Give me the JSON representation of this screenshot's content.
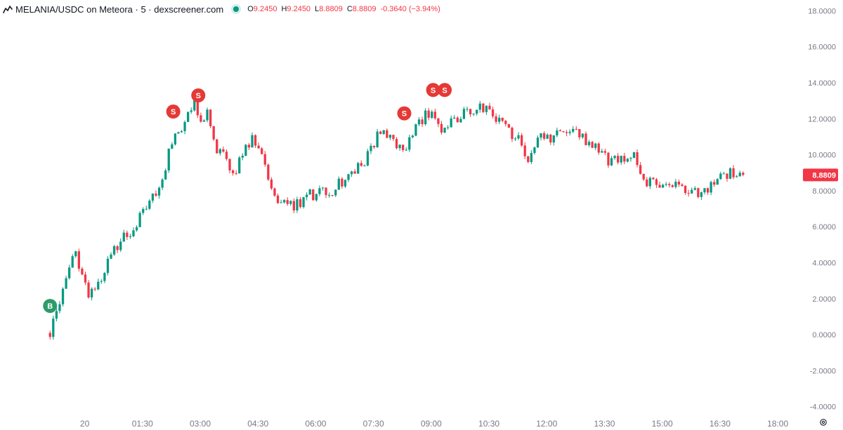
{
  "header": {
    "symbol": "MELANIA/USDC on Meteora · 5 · dexscreener.com",
    "o_label": "O",
    "o_value": "9.2450",
    "h_label": "H",
    "h_value": "9.2450",
    "l_label": "L",
    "l_value": "8.8809",
    "c_label": "C",
    "c_value": "8.8809",
    "change": "-0.3640 (−3.94%)"
  },
  "colors": {
    "up": "#089981",
    "down": "#f23645",
    "axis_text": "#787b86",
    "price_label_bg": "#f23645",
    "buy_marker": "#2e9b6a",
    "sell_marker": "#e53935",
    "text": "#131722"
  },
  "icons": {
    "logo": "chart-logo-icon",
    "settings": "settings-gear-icon"
  },
  "chart_data": {
    "type": "candlestick",
    "title": "MELANIA/USDC on Meteora · 5 · dexscreener.com",
    "timeframe": "5",
    "grid": false,
    "ylim": [
      -4.4,
      18.6
    ],
    "y_ticks": [
      "18.0000",
      "16.0000",
      "14.0000",
      "12.0000",
      "10.0000",
      "8.0000",
      "6.0000",
      "4.0000",
      "2.0000",
      "0.0000",
      "-2.0000",
      "-4.0000"
    ],
    "x_ticks": [
      "20",
      "01:30",
      "03:00",
      "04:30",
      "06:00",
      "07:30",
      "09:00",
      "10:30",
      "12:00",
      "13:30",
      "15:00",
      "16:30",
      "18:00"
    ],
    "x_tick_hours": [
      0,
      1.5,
      3,
      4.5,
      6,
      7.5,
      9,
      10.5,
      12,
      13.5,
      15,
      16.5,
      18
    ],
    "x_range_hours": [
      -2.2,
      18.6
    ],
    "last_price": "8.8809",
    "last_close": 8.8809,
    "markers": [
      {
        "type": "B",
        "t": -0.9,
        "price": 1.6
      },
      {
        "type": "S",
        "t": 2.3,
        "price": 12.4
      },
      {
        "type": "S",
        "t": 2.95,
        "price": 13.3
      },
      {
        "type": "S",
        "t": 8.3,
        "price": 12.3
      },
      {
        "type": "S",
        "t": 9.05,
        "price": 13.6
      },
      {
        "type": "S",
        "t": 9.35,
        "price": 13.6
      }
    ],
    "path": [
      [
        -0.9,
        0.1
      ],
      [
        -0.6,
        2.2
      ],
      [
        -0.25,
        4.5
      ],
      [
        0.1,
        2.2
      ],
      [
        0.4,
        3.0
      ],
      [
        0.7,
        4.5
      ],
      [
        1.05,
        5.5
      ],
      [
        1.35,
        6.2
      ],
      [
        1.65,
        7.0
      ],
      [
        2.0,
        8.5
      ],
      [
        2.3,
        11.0
      ],
      [
        2.6,
        11.8
      ],
      [
        2.85,
        12.8
      ],
      [
        3.05,
        11.8
      ],
      [
        3.2,
        12.6
      ],
      [
        3.4,
        10.3
      ],
      [
        3.65,
        10.1
      ],
      [
        3.85,
        8.8
      ],
      [
        4.15,
        10.2
      ],
      [
        4.35,
        11.0
      ],
      [
        4.6,
        9.8
      ],
      [
        4.85,
        8.2
      ],
      [
        5.05,
        7.4
      ],
      [
        5.3,
        7.1
      ],
      [
        5.55,
        7.3
      ],
      [
        5.9,
        7.8
      ],
      [
        6.4,
        8.0
      ],
      [
        6.9,
        8.8
      ],
      [
        7.3,
        9.8
      ],
      [
        7.6,
        11.0
      ],
      [
        7.9,
        11.2
      ],
      [
        8.1,
        10.2
      ],
      [
        8.4,
        10.7
      ],
      [
        8.8,
        12.0
      ],
      [
        9.05,
        12.7
      ],
      [
        9.2,
        11.5
      ],
      [
        9.5,
        11.8
      ],
      [
        9.85,
        12.4
      ],
      [
        10.3,
        12.8
      ],
      [
        10.7,
        12.0
      ],
      [
        11.0,
        11.3
      ],
      [
        11.3,
        10.8
      ],
      [
        11.5,
        9.4
      ],
      [
        11.75,
        10.9
      ],
      [
        12.2,
        11.0
      ],
      [
        12.5,
        11.4
      ],
      [
        13.0,
        10.8
      ],
      [
        13.3,
        10.3
      ],
      [
        13.6,
        9.7
      ],
      [
        14.0,
        9.7
      ],
      [
        14.3,
        9.9
      ],
      [
        14.6,
        8.5
      ],
      [
        14.9,
        8.5
      ],
      [
        15.3,
        8.3
      ],
      [
        15.7,
        7.8
      ],
      [
        16.05,
        8.0
      ],
      [
        16.5,
        8.6
      ],
      [
        17.0,
        9.2
      ],
      [
        17.1,
        8.88
      ]
    ]
  }
}
